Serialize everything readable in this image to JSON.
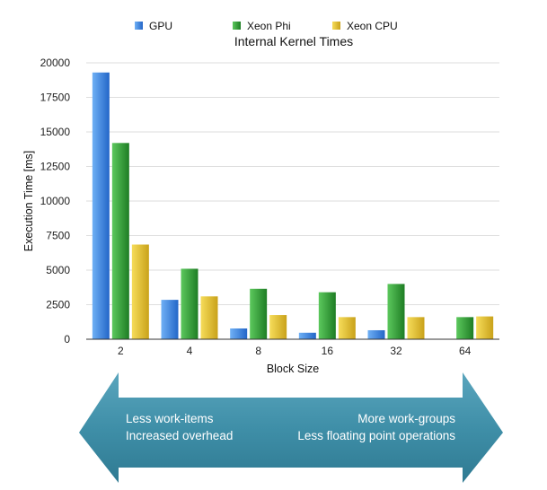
{
  "chart_data": {
    "type": "bar",
    "title": "Internal Kernel Times",
    "xlabel": "Block Size",
    "ylabel": "Execution Time [ms]",
    "categories": [
      "2",
      "4",
      "8",
      "16",
      "32",
      "64"
    ],
    "ylim": [
      0,
      20000
    ],
    "yticks": [
      0,
      2500,
      5000,
      7500,
      10000,
      12500,
      15000,
      17500,
      20000
    ],
    "grid": true,
    "legend_position": "top",
    "series": [
      {
        "name": "GPU",
        "color": "#3d85e0",
        "values": [
          19300,
          2850,
          780,
          470,
          650,
          0
        ]
      },
      {
        "name": "Xeon Phi",
        "color": "#2ea134",
        "values": [
          14200,
          5100,
          3650,
          3400,
          4000,
          1600
        ]
      },
      {
        "name": "Xeon CPU",
        "color": "#e8c42a",
        "values": [
          6850,
          3100,
          1750,
          1600,
          1600,
          1650
        ]
      }
    ]
  },
  "arrow": {
    "color": "#3f8fa8",
    "left_lines": [
      "Less work-items",
      "Increased overhead"
    ],
    "right_lines": [
      "More work-groups",
      "Less floating point operations"
    ]
  }
}
